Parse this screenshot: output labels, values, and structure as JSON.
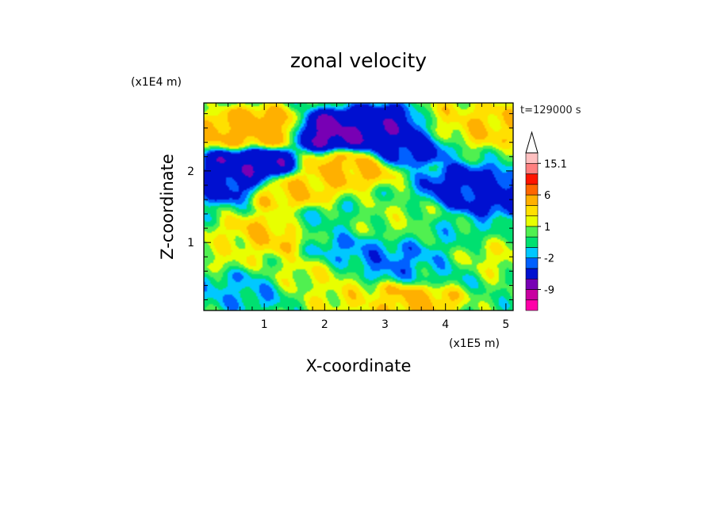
{
  "chart_data": {
    "type": "heatmap",
    "title": "zonal velocity",
    "xlabel": "X-coordinate",
    "ylabel": "Z-coordinate",
    "x_unit": "(x1E5 m)",
    "y_unit": "(x1E4 m)",
    "time_label": "t=129000 s",
    "xlim": [
      0,
      5.12
    ],
    "ylim": [
      0.05,
      2.95
    ],
    "x_ticks": [
      1,
      2,
      3,
      4,
      5
    ],
    "x_tick_labels": [
      "1",
      "2",
      "3",
      "4",
      "5"
    ],
    "y_ticks": [
      1,
      2
    ],
    "y_tick_labels": [
      "1",
      "2"
    ],
    "colorbar": {
      "levels": [
        -15,
        -12,
        -9,
        -6,
        -3,
        -2,
        -1,
        0,
        1,
        2,
        3,
        6,
        9,
        12,
        15.1
      ],
      "colors": [
        "#ff00a8",
        "#c800a0",
        "#7800b4",
        "#0010d0",
        "#0060ff",
        "#00c8ff",
        "#00e070",
        "#50f050",
        "#e8ff00",
        "#ffe000",
        "#ffb000",
        "#ff6600",
        "#ff1400",
        "#ff8080",
        "#ffc0c0"
      ],
      "labels": [
        "15.1",
        "6",
        "1",
        "-2",
        "-9"
      ],
      "label_values": [
        15.1,
        6,
        1,
        -2,
        -9
      ]
    },
    "features": [
      {
        "x": 0.9,
        "z": 2.6,
        "value": 4.5
      },
      {
        "x": 0.6,
        "z": 2.55,
        "value": 3.5
      },
      {
        "x": 2.2,
        "z": 2.55,
        "value": -7
      },
      {
        "x": 2.8,
        "z": 2.6,
        "value": -5
      },
      {
        "x": 3.3,
        "z": 2.35,
        "value": -4
      },
      {
        "x": 3.15,
        "z": 2.62,
        "value": -6
      },
      {
        "x": 0.75,
        "z": 2.1,
        "value": -6
      },
      {
        "x": 0.3,
        "z": 1.85,
        "value": -4
      },
      {
        "x": 4.4,
        "z": 1.8,
        "value": -4
      },
      {
        "x": 4.8,
        "z": 1.65,
        "value": -4
      },
      {
        "x": 2.4,
        "z": 2.05,
        "value": 3.5
      },
      {
        "x": 1.5,
        "z": 1.7,
        "value": 3
      },
      {
        "x": 1.0,
        "z": 1.1,
        "value": 3
      },
      {
        "x": 0.3,
        "z": 0.9,
        "value": 1.5
      },
      {
        "x": 4.8,
        "z": 0.8,
        "value": 1.5
      },
      {
        "x": 3.3,
        "z": 0.7,
        "value": -2.5
      },
      {
        "x": 2.5,
        "z": 0.85,
        "value": -2
      },
      {
        "x": 3.1,
        "z": 1.3,
        "value": 0.8
      },
      {
        "x": 4.2,
        "z": 1.1,
        "value": -0.8
      },
      {
        "x": 0.6,
        "z": 0.3,
        "value": -1.5
      },
      {
        "x": 3.5,
        "z": 0.2,
        "value": 3.5
      },
      {
        "x": 2.5,
        "z": 0.15,
        "value": 2
      },
      {
        "x": 4.0,
        "z": 2.7,
        "value": 2
      },
      {
        "x": 4.7,
        "z": 2.65,
        "value": 3
      },
      {
        "x": 3.8,
        "z": 0.6,
        "value": -0.8
      },
      {
        "x": 1.8,
        "z": 0.55,
        "value": 1.5
      },
      {
        "x": 2.0,
        "z": 1.3,
        "value": -0.6
      }
    ]
  }
}
